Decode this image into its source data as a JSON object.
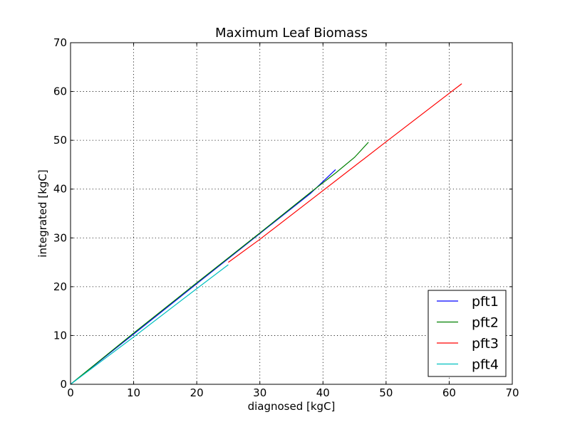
{
  "chart_data": {
    "type": "line",
    "title": "Maximum Leaf Biomass",
    "xlabel": "diagnosed [kgC]",
    "ylabel": "integrated [kgC]",
    "xlim": [
      0,
      70
    ],
    "ylim": [
      0,
      70
    ],
    "x_ticks": [
      "0",
      "10",
      "20",
      "30",
      "40",
      "50",
      "60",
      "70"
    ],
    "y_ticks": [
      "0",
      "10",
      "20",
      "30",
      "40",
      "50",
      "60",
      "70"
    ],
    "grid": true,
    "legend_position": "lower-right",
    "series": [
      {
        "name": "pft1",
        "color": "#0000ff",
        "points": [
          [
            0,
            0
          ],
          [
            10,
            10.3
          ],
          [
            20,
            20.6
          ],
          [
            30,
            30.9
          ],
          [
            38,
            39.1
          ],
          [
            42,
            44.0
          ]
        ]
      },
      {
        "name": "pft2",
        "color": "#008000",
        "points": [
          [
            0,
            0
          ],
          [
            10,
            10.5
          ],
          [
            20,
            20.8
          ],
          [
            30,
            31.0
          ],
          [
            38,
            39.3
          ],
          [
            42,
            43.3
          ],
          [
            45,
            46.5
          ],
          [
            47.2,
            49.6
          ]
        ]
      },
      {
        "name": "pft3",
        "color": "#ff0000",
        "points": [
          [
            25,
            25.0
          ],
          [
            30,
            29.7
          ],
          [
            40,
            39.7
          ],
          [
            50,
            49.7
          ],
          [
            62,
            61.6
          ]
        ]
      },
      {
        "name": "pft4",
        "color": "#00bfbf",
        "points": [
          [
            0,
            0
          ],
          [
            10,
            9.7
          ],
          [
            20,
            19.6
          ],
          [
            25,
            24.5
          ]
        ]
      }
    ]
  }
}
